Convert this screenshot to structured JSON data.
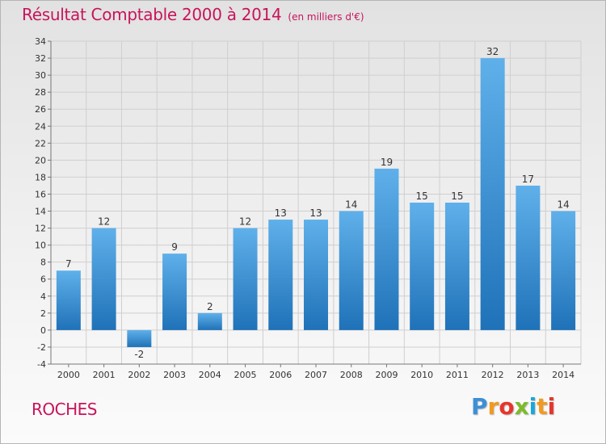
{
  "header": {
    "title": "Résultat Comptable 2000 à 2014",
    "unit_note": "(en milliers d'€)"
  },
  "footer": {
    "subject": "ROCHES",
    "logo_text": "Proxiti",
    "logo_letters": [
      "P",
      "r",
      "o",
      "x",
      "i",
      "t",
      "i"
    ],
    "logo_colors": [
      "#3d8fd6",
      "#f29a1f",
      "#e8352b",
      "#7dbb2a",
      "#1aa7d9",
      "#f29a1f",
      "#e8352b"
    ]
  },
  "colors": {
    "bar_top": "#5fb0ea",
    "bar_bottom": "#1f72b8",
    "title": "#c8145a"
  },
  "chart_data": {
    "type": "bar",
    "title": "Résultat Comptable 2000 à 2014",
    "subtitle": "(en milliers d'€)",
    "xlabel": "",
    "ylabel": "",
    "categories": [
      "2000",
      "2001",
      "2002",
      "2003",
      "2004",
      "2005",
      "2006",
      "2007",
      "2008",
      "2009",
      "2010",
      "2011",
      "2012",
      "2013",
      "2014"
    ],
    "values": [
      7,
      12,
      -2,
      9,
      2,
      12,
      13,
      13,
      14,
      19,
      15,
      15,
      32,
      17,
      14
    ],
    "ylim": [
      -4,
      34
    ],
    "yticks": [
      -4,
      -2,
      0,
      2,
      4,
      6,
      8,
      10,
      12,
      14,
      16,
      18,
      20,
      22,
      24,
      26,
      28,
      30,
      32,
      34
    ],
    "grid": true,
    "legend": "none"
  }
}
